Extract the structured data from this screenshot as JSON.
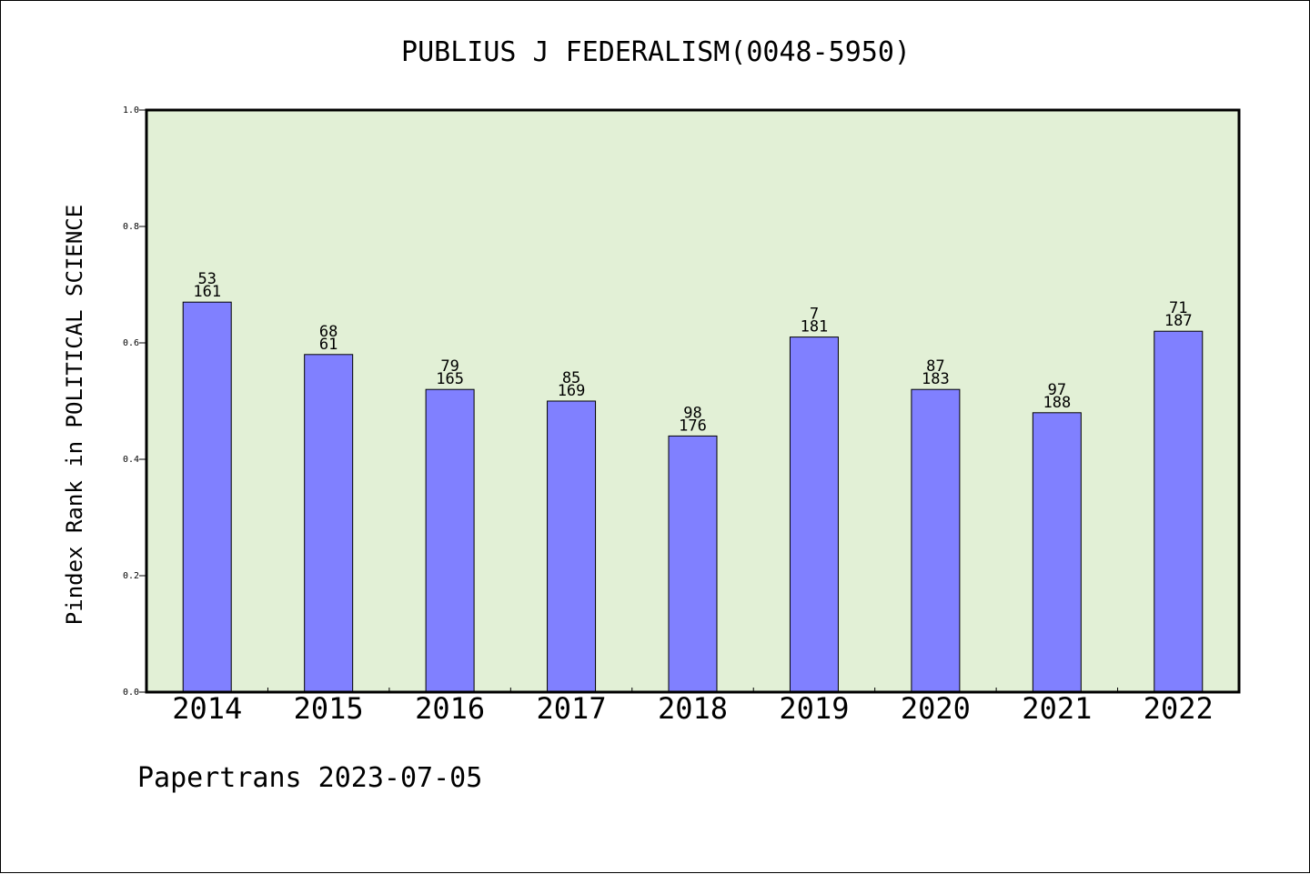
{
  "chart_data": {
    "type": "bar",
    "title": "PUBLIUS J FEDERALISM(0048-5950)",
    "ylabel": "Pindex Rank in POLITICAL SCIENCE",
    "xlabel": "",
    "ylim": [
      0,
      1.0
    ],
    "yticks": [
      "0.0",
      "0.2",
      "0.4",
      "0.6",
      "0.8",
      "1.0"
    ],
    "grid": false,
    "colors": {
      "plot_background": "#e2f0d6",
      "bar_fill": "#8080ff",
      "bar_stroke": "#000000"
    },
    "categories": [
      "2014",
      "2015",
      "2016",
      "2017",
      "2018",
      "2019",
      "2020",
      "2021",
      "2022"
    ],
    "values": [
      0.67,
      0.58,
      0.52,
      0.5,
      0.44,
      0.61,
      0.52,
      0.48,
      0.62
    ],
    "annotations": [
      {
        "top": "53",
        "bottom": "161"
      },
      {
        "top": "68",
        "bottom": "61"
      },
      {
        "top": "79",
        "bottom": "165"
      },
      {
        "top": "85",
        "bottom": "169"
      },
      {
        "top": "98",
        "bottom": "176"
      },
      {
        "top": "7",
        "bottom": "181"
      },
      {
        "top": "87",
        "bottom": "183"
      },
      {
        "top": "97",
        "bottom": "188"
      },
      {
        "top": "71",
        "bottom": "187"
      }
    ]
  },
  "footer": "Papertrans 2023-07-05"
}
